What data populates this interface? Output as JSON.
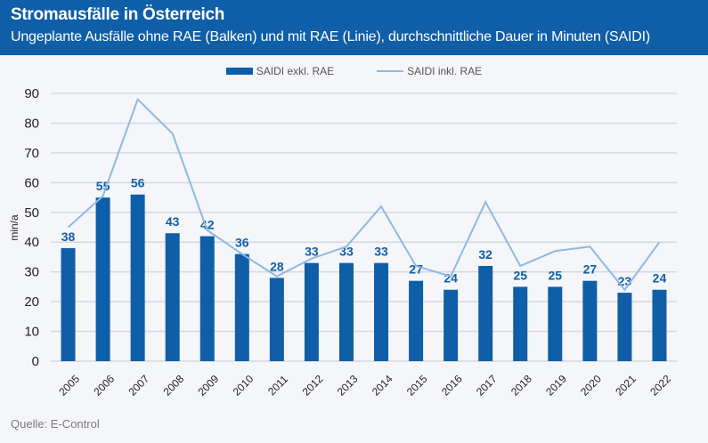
{
  "header": {
    "title": "Stromausfälle in Österreich",
    "subtitle": "Ungeplante Ausfälle ohne RAE (Balken) und mit RAE (Linie), durchschnittliche Dauer in Minuten (SAIDI)"
  },
  "source": "Quelle: E-Control",
  "colors": {
    "bar": "#0f5ea8",
    "line": "#8fb9e0",
    "header": "#0f5ea8"
  },
  "chart_data": {
    "type": "bar",
    "title": "",
    "xlabel": "",
    "ylabel": "min/a",
    "ylim": [
      0,
      90
    ],
    "yticks": [
      0,
      10,
      20,
      30,
      40,
      50,
      60,
      70,
      80,
      90
    ],
    "grid": true,
    "legend_position": "top",
    "categories": [
      "2005",
      "2006",
      "2007",
      "2008",
      "2009",
      "2010",
      "2011",
      "2012",
      "2013",
      "2014",
      "2015",
      "2016",
      "2017",
      "2018",
      "2019",
      "2020",
      "2021",
      "2022"
    ],
    "series": [
      {
        "name": "SAIDI exkl. RAE",
        "type": "bar",
        "values": [
          38,
          55,
          56,
          43,
          42,
          36,
          28,
          33,
          33,
          33,
          27,
          24,
          32,
          25,
          25,
          27,
          23,
          24
        ],
        "data_labels": true
      },
      {
        "name": "SAIDI inkl. RAE",
        "type": "line",
        "values": [
          45,
          55.5,
          88,
          76.5,
          44,
          36,
          28.5,
          34.5,
          38.5,
          52,
          32,
          28.5,
          53.5,
          32,
          37,
          38.5,
          24,
          40
        ],
        "data_labels": false
      }
    ]
  }
}
